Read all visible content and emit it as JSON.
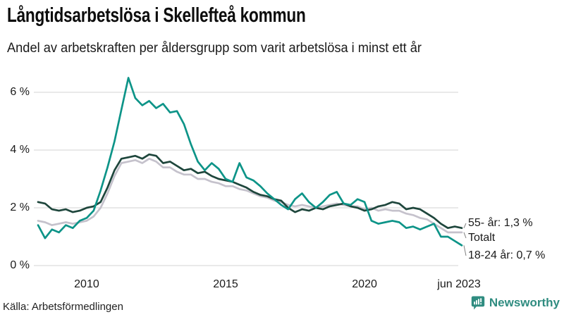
{
  "header": {
    "title": "Långtidsarbetslösa i Skellefteå kommun",
    "subtitle": "Andel av arbetskraften per åldersgrupp som varit arbetslösa i minst ett år"
  },
  "footer": {
    "source": "Källa: Arbetsförmedlingen",
    "brand": "Newsworthy",
    "brand_color": "#2f8c80"
  },
  "colors": {
    "grid": "#dcdcdc",
    "connector": "#808080",
    "axis_text": "#1a1a1a"
  },
  "chart_data": {
    "type": "line",
    "title": "Långtidsarbetslösa i Skellefteå kommun",
    "subtitle": "Andel av arbetskraften per åldersgrupp som varit arbetslösa i minst ett år",
    "xlabel": "",
    "ylabel": "",
    "xlim": [
      2008.25,
      2023.5
    ],
    "ylim": [
      0,
      6.6
    ],
    "grid": "horizontal",
    "legend_position": "end-of-line-labels",
    "y_ticks": [
      {
        "v": 0,
        "label": "0 %"
      },
      {
        "v": 2,
        "label": "2 %"
      },
      {
        "v": 4,
        "label": "4 %"
      },
      {
        "v": 6,
        "label": "6 %"
      }
    ],
    "x_ticks": [
      {
        "v": 2010,
        "label": "2010"
      },
      {
        "v": 2015,
        "label": "2015"
      },
      {
        "v": 2020,
        "label": "2020"
      },
      {
        "v": 2023.4,
        "label": "jun 2023"
      }
    ],
    "x": [
      2008.25,
      2008.5,
      2008.75,
      2009,
      2009.25,
      2009.5,
      2009.75,
      2010,
      2010.25,
      2010.5,
      2010.75,
      2011,
      2011.25,
      2011.5,
      2011.75,
      2012,
      2012.25,
      2012.5,
      2012.75,
      2013,
      2013.25,
      2013.5,
      2013.75,
      2014,
      2014.25,
      2014.5,
      2014.75,
      2015,
      2015.25,
      2015.5,
      2015.75,
      2016,
      2016.25,
      2016.5,
      2016.75,
      2017,
      2017.25,
      2017.5,
      2017.75,
      2018,
      2018.25,
      2018.5,
      2018.75,
      2019,
      2019.25,
      2019.5,
      2019.75,
      2020,
      2020.25,
      2020.5,
      2020.75,
      2021,
      2021.25,
      2021.5,
      2021.75,
      2022,
      2022.25,
      2022.5,
      2022.75,
      2023,
      2023.25,
      2023.5
    ],
    "series": [
      {
        "name": "Totalt",
        "end_label": "Totalt",
        "end_value": null,
        "color": "#c5c2cc",
        "values": [
          1.55,
          1.5,
          1.4,
          1.45,
          1.5,
          1.45,
          1.5,
          1.55,
          1.7,
          2.0,
          2.5,
          3.1,
          3.55,
          3.6,
          3.65,
          3.55,
          3.7,
          3.6,
          3.4,
          3.4,
          3.25,
          3.15,
          3.15,
          3.0,
          3.0,
          2.9,
          2.85,
          2.75,
          2.75,
          2.65,
          2.6,
          2.5,
          2.4,
          2.35,
          2.25,
          2.2,
          2.1,
          2.05,
          2.1,
          2.05,
          2.0,
          2.05,
          2.1,
          2.15,
          2.1,
          2.05,
          2.05,
          1.95,
          2.0,
          1.9,
          1.95,
          1.9,
          1.9,
          1.8,
          1.75,
          1.65,
          1.6,
          1.45,
          1.3,
          1.15,
          1.15,
          1.15
        ]
      },
      {
        "name": "55- år",
        "end_label": "55- år: 1,3 %",
        "end_value": "1,3 %",
        "color": "#1e463c",
        "values": [
          2.2,
          2.15,
          1.95,
          1.9,
          1.95,
          1.85,
          1.9,
          2.0,
          2.05,
          2.2,
          2.7,
          3.3,
          3.7,
          3.75,
          3.8,
          3.7,
          3.85,
          3.8,
          3.55,
          3.6,
          3.45,
          3.3,
          3.35,
          3.2,
          3.25,
          3.1,
          3.0,
          2.95,
          2.9,
          2.8,
          2.7,
          2.55,
          2.45,
          2.4,
          2.3,
          2.25,
          2.0,
          1.85,
          1.95,
          1.9,
          2.0,
          1.95,
          2.05,
          2.1,
          2.15,
          2.05,
          2.0,
          1.9,
          1.95,
          2.05,
          2.1,
          2.2,
          2.15,
          1.95,
          2.0,
          1.95,
          1.8,
          1.65,
          1.45,
          1.3,
          1.35,
          1.3
        ]
      },
      {
        "name": "18-24 år",
        "end_label": "18-24 år: 0,7 %",
        "end_value": "0,7 %",
        "color": "#0d9488",
        "values": [
          1.4,
          0.95,
          1.25,
          1.15,
          1.4,
          1.3,
          1.55,
          1.65,
          1.9,
          2.6,
          3.4,
          4.3,
          5.4,
          6.5,
          5.8,
          5.55,
          5.7,
          5.45,
          5.6,
          5.3,
          5.35,
          4.9,
          4.2,
          3.6,
          3.3,
          3.55,
          3.35,
          3.0,
          2.9,
          3.55,
          3.05,
          2.95,
          2.75,
          2.5,
          2.3,
          2.1,
          1.95,
          2.3,
          2.5,
          2.2,
          2.0,
          2.2,
          2.45,
          2.55,
          2.15,
          2.1,
          2.3,
          2.2,
          1.55,
          1.45,
          1.5,
          1.55,
          1.5,
          1.3,
          1.35,
          1.25,
          1.35,
          1.45,
          1.0,
          1.0,
          0.85,
          0.7
        ]
      }
    ]
  }
}
